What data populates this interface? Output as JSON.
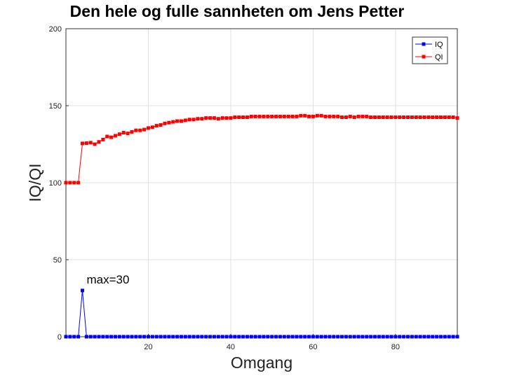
{
  "chart_data": {
    "type": "line",
    "title": "Den hele og fulle sannheten om Jens Petter",
    "xlabel": "Omgang",
    "ylabel": "IQ/QI",
    "xlim": [
      0,
      95
    ],
    "ylim": [
      0,
      200
    ],
    "x_ticks": [
      20,
      40,
      60,
      80
    ],
    "y_ticks": [
      0,
      50,
      100,
      150,
      200
    ],
    "grid": true,
    "legend_position": "top-right",
    "annotation": {
      "text": "max=30",
      "x": 4,
      "y": 30
    },
    "series": [
      {
        "name": "IQ",
        "color": "#0000ff",
        "marker": "square",
        "x": [
          0,
          1,
          2,
          3,
          4,
          5,
          6,
          7,
          8,
          9,
          10,
          11,
          12,
          13,
          14,
          15,
          16,
          17,
          18,
          19,
          20,
          21,
          22,
          23,
          24,
          25,
          26,
          27,
          28,
          29,
          30,
          31,
          32,
          33,
          34,
          35,
          36,
          37,
          38,
          39,
          40,
          41,
          42,
          43,
          44,
          45,
          46,
          47,
          48,
          49,
          50,
          51,
          52,
          53,
          54,
          55,
          56,
          57,
          58,
          59,
          60,
          61,
          62,
          63,
          64,
          65,
          66,
          67,
          68,
          69,
          70,
          71,
          72,
          73,
          74,
          75,
          76,
          77,
          78,
          79,
          80,
          81,
          82,
          83,
          84,
          85,
          86,
          87,
          88,
          89,
          90,
          91,
          92,
          93,
          94,
          95
        ],
        "y": [
          0,
          0,
          0,
          0,
          30,
          0,
          0,
          0,
          0,
          0,
          0,
          0,
          0,
          0,
          0,
          0,
          0,
          0,
          0,
          0,
          0,
          0,
          0,
          0,
          0,
          0,
          0,
          0,
          0,
          0,
          0,
          0,
          0,
          0,
          0,
          0,
          0,
          0,
          0,
          0,
          0,
          0,
          0,
          0,
          0,
          0,
          0,
          0,
          0,
          0,
          0,
          0,
          0,
          0,
          0,
          0,
          0,
          0,
          0,
          0,
          0,
          0,
          0,
          0,
          0,
          0,
          0,
          0,
          0,
          0,
          0,
          0,
          0,
          0,
          0,
          0,
          0,
          0,
          0,
          0,
          0,
          0,
          0,
          0,
          0,
          0,
          0,
          0,
          0,
          0,
          0,
          0,
          0,
          0,
          0,
          0
        ]
      },
      {
        "name": "QI",
        "color": "#ff0000",
        "marker": "square",
        "x": [
          0,
          1,
          2,
          3,
          4,
          5,
          6,
          7,
          8,
          9,
          10,
          11,
          12,
          13,
          14,
          15,
          16,
          17,
          18,
          19,
          20,
          21,
          22,
          23,
          24,
          25,
          26,
          27,
          28,
          29,
          30,
          31,
          32,
          33,
          34,
          35,
          36,
          37,
          38,
          39,
          40,
          41,
          42,
          43,
          44,
          45,
          46,
          47,
          48,
          49,
          50,
          51,
          52,
          53,
          54,
          55,
          56,
          57,
          58,
          59,
          60,
          61,
          62,
          63,
          64,
          65,
          66,
          67,
          68,
          69,
          70,
          71,
          72,
          73,
          74,
          75,
          76,
          77,
          78,
          79,
          80,
          81,
          82,
          83,
          84,
          85,
          86,
          87,
          88,
          89,
          90,
          91,
          92,
          93,
          94,
          95
        ],
        "y": [
          100,
          100,
          100,
          100,
          125.5,
          125.7,
          126,
          125,
          126.5,
          128,
          130,
          129.5,
          130.5,
          131.5,
          132.5,
          132,
          133,
          134,
          134,
          134.5,
          135.5,
          136,
          137,
          137.5,
          138.5,
          139,
          139.5,
          140,
          140,
          140.5,
          141,
          141,
          141.5,
          141.5,
          142,
          142,
          142,
          141.5,
          142,
          142,
          142,
          142.5,
          142.5,
          142.5,
          142.5,
          143,
          143,
          143,
          143,
          143,
          143,
          143,
          143,
          143,
          143,
          143,
          143,
          143.5,
          143.5,
          143,
          143,
          143.5,
          143.5,
          143,
          143,
          143,
          143,
          142.5,
          142.5,
          143,
          142.5,
          143,
          143,
          143,
          142.5,
          142.5,
          142.5,
          142.5,
          142.5,
          142.5,
          142.5,
          142.5,
          142.5,
          142.5,
          142.5,
          142.5,
          142.5,
          142.5,
          142.5,
          142.5,
          142.5,
          142.5,
          142.5,
          142.5,
          142.5,
          142
        ]
      }
    ]
  }
}
